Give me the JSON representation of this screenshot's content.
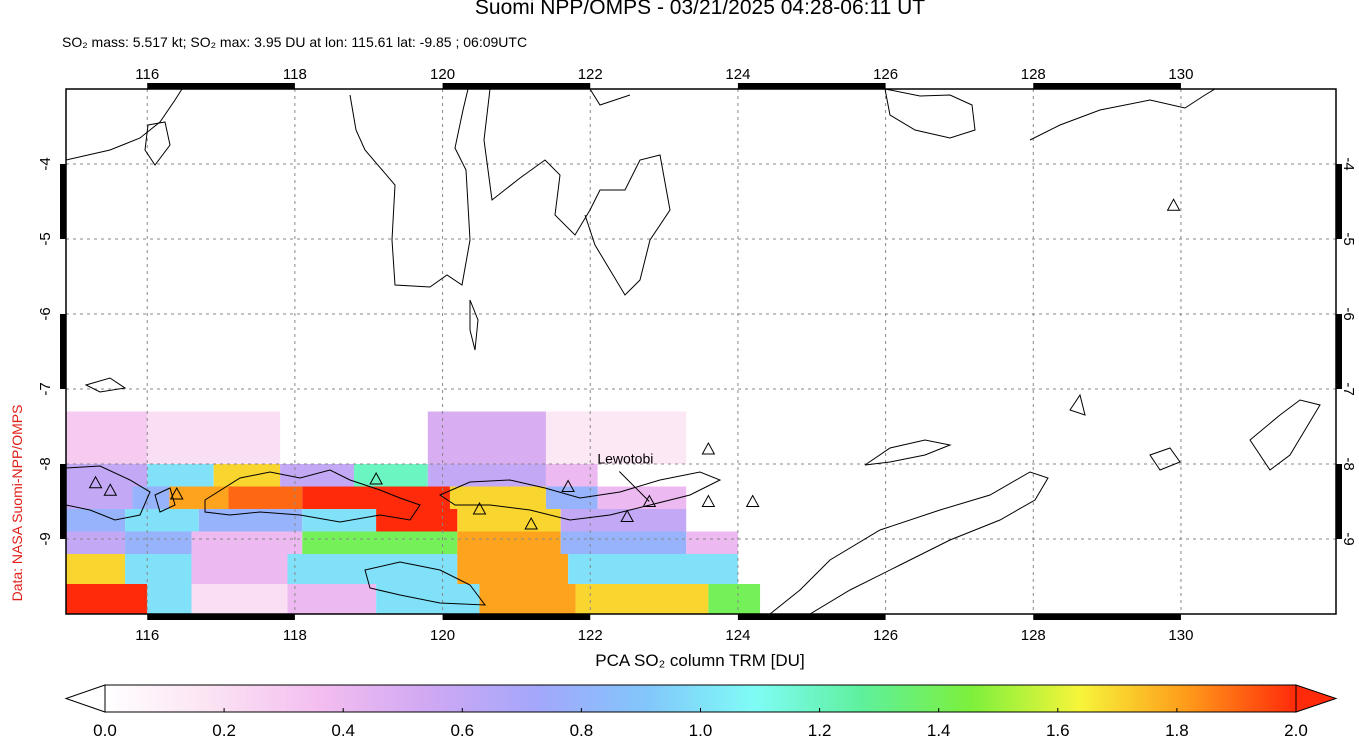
{
  "chart_data": {
    "type": "map",
    "title": "Suomi NPP/OMPS - 03/21/2025 04:28-06:11 UT",
    "subtitle": "SO₂ mass: 5.517 kt; SO₂ max: 3.95 DU at lon: 115.61 lat: -9.85 ; 06:09UTC",
    "side_note": "Data: NASA Suomi-NPP/OMPS",
    "xlim": [
      114.9,
      132.1
    ],
    "ylim": [
      -10.0,
      -3.0
    ],
    "xticks": [
      116,
      118,
      120,
      122,
      124,
      126,
      128,
      130
    ],
    "yticks": [
      -4,
      -5,
      -6,
      -7,
      -8,
      -9
    ],
    "grid": true,
    "colorbar": {
      "label": "PCA SO₂ column TRM [DU]",
      "lim": [
        0,
        2
      ],
      "ticks": [
        {
          "value": 0,
          "label": "0.0"
        },
        {
          "value": 0.2,
          "label": "0.2"
        },
        {
          "value": 0.4,
          "label": "0.4"
        },
        {
          "value": 0.6,
          "label": "0.6"
        },
        {
          "value": 0.8,
          "label": "0.8"
        },
        {
          "value": 1.0,
          "label": "1.0"
        },
        {
          "value": 1.2,
          "label": "1.2"
        },
        {
          "value": 1.4,
          "label": "1.4"
        },
        {
          "value": 1.6,
          "label": "1.6"
        },
        {
          "value": 1.8,
          "label": "1.8"
        },
        {
          "value": 2.0,
          "label": "2.0"
        }
      ],
      "colors": [
        "#ffffff",
        "#fbe2f3",
        "#f3bdf0",
        "#cfa8f3",
        "#a3a7fb",
        "#82c6fb",
        "#7ffcf6",
        "#5ef09c",
        "#7df03c",
        "#f6f53a",
        "#ff9a1a",
        "#ff2a0a"
      ]
    },
    "pixels": [
      {
        "lon": [
          114.9,
          116.0
        ],
        "lat": [
          -7.3,
          -8.0
        ],
        "value": 0.3
      },
      {
        "lon": [
          116.0,
          117.8
        ],
        "lat": [
          -7.3,
          -8.0
        ],
        "value": 0.2
      },
      {
        "lon": [
          119.8,
          121.4
        ],
        "lat": [
          -7.3,
          -8.0
        ],
        "value": 0.5
      },
      {
        "lon": [
          121.4,
          123.3
        ],
        "lat": [
          -7.3,
          -8.0
        ],
        "value": 0.15
      },
      {
        "lon": [
          114.9,
          116.0
        ],
        "lat": [
          -8.0,
          -8.3
        ],
        "value": 0.6
      },
      {
        "lon": [
          116.0,
          116.9
        ],
        "lat": [
          -8.0,
          -8.3
        ],
        "value": 1.0
      },
      {
        "lon": [
          116.9,
          117.8
        ],
        "lat": [
          -8.0,
          -8.3
        ],
        "value": 1.7
      },
      {
        "lon": [
          117.8,
          118.8
        ],
        "lat": [
          -8.0,
          -8.3
        ],
        "value": 0.6
      },
      {
        "lon": [
          118.8,
          119.8
        ],
        "lat": [
          -8.0,
          -8.3
        ],
        "value": 1.2
      },
      {
        "lon": [
          119.8,
          121.4
        ],
        "lat": [
          -8.0,
          -8.3
        ],
        "value": 0.6
      },
      {
        "lon": [
          121.4,
          122.1
        ],
        "lat": [
          -8.0,
          -8.3
        ],
        "value": 0.4
      },
      {
        "lon": [
          114.9,
          115.8
        ],
        "lat": [
          -8.3,
          -8.6
        ],
        "value": 0.6
      },
      {
        "lon": [
          115.8,
          116.3
        ],
        "lat": [
          -8.3,
          -8.6
        ],
        "value": 0.8
      },
      {
        "lon": [
          116.3,
          117.1
        ],
        "lat": [
          -8.3,
          -8.6
        ],
        "value": 1.8
      },
      {
        "lon": [
          117.1,
          118.1
        ],
        "lat": [
          -8.3,
          -8.6
        ],
        "value": 1.9
      },
      {
        "lon": [
          118.1,
          120.1
        ],
        "lat": [
          -8.3,
          -8.6
        ],
        "value": 2.0
      },
      {
        "lon": [
          120.1,
          121.4
        ],
        "lat": [
          -8.3,
          -8.6
        ],
        "value": 1.7
      },
      {
        "lon": [
          121.4,
          122.1
        ],
        "lat": [
          -8.3,
          -8.6
        ],
        "value": 0.8
      },
      {
        "lon": [
          122.1,
          123.3
        ],
        "lat": [
          -8.3,
          -8.6
        ],
        "value": 0.4
      },
      {
        "lon": [
          114.9,
          115.7
        ],
        "lat": [
          -8.6,
          -8.9
        ],
        "value": 0.8
      },
      {
        "lon": [
          115.7,
          116.7
        ],
        "lat": [
          -8.6,
          -8.9
        ],
        "value": 1.0
      },
      {
        "lon": [
          116.7,
          118.1
        ],
        "lat": [
          -8.6,
          -8.9
        ],
        "value": 0.8
      },
      {
        "lon": [
          118.1,
          119.1
        ],
        "lat": [
          -8.6,
          -8.9
        ],
        "value": 1.0
      },
      {
        "lon": [
          119.1,
          120.2
        ],
        "lat": [
          -8.6,
          -8.9
        ],
        "value": 2.0
      },
      {
        "lon": [
          120.2,
          121.6
        ],
        "lat": [
          -8.6,
          -8.9
        ],
        "value": 1.7
      },
      {
        "lon": [
          121.6,
          123.3
        ],
        "lat": [
          -8.6,
          -8.9
        ],
        "value": 0.6
      },
      {
        "lon": [
          114.9,
          115.7
        ],
        "lat": [
          -8.9,
          -9.2
        ],
        "value": 0.6
      },
      {
        "lon": [
          115.7,
          116.6
        ],
        "lat": [
          -8.9,
          -9.2
        ],
        "value": 0.8
      },
      {
        "lon": [
          116.6,
          118.1
        ],
        "lat": [
          -8.9,
          -9.2
        ],
        "value": 0.4
      },
      {
        "lon": [
          118.1,
          120.2
        ],
        "lat": [
          -8.9,
          -9.2
        ],
        "value": 1.4
      },
      {
        "lon": [
          120.2,
          121.6
        ],
        "lat": [
          -8.9,
          -9.2
        ],
        "value": 1.8
      },
      {
        "lon": [
          121.6,
          123.3
        ],
        "lat": [
          -8.9,
          -9.2
        ],
        "value": 0.8
      },
      {
        "lon": [
          123.3,
          124.0
        ],
        "lat": [
          -8.9,
          -9.2
        ],
        "value": 0.4
      },
      {
        "lon": [
          114.9,
          115.7
        ],
        "lat": [
          -9.2,
          -9.6
        ],
        "value": 1.7
      },
      {
        "lon": [
          115.7,
          116.6
        ],
        "lat": [
          -9.2,
          -9.6
        ],
        "value": 1.0
      },
      {
        "lon": [
          116.6,
          117.9
        ],
        "lat": [
          -9.2,
          -9.6
        ],
        "value": 0.4
      },
      {
        "lon": [
          117.9,
          120.2
        ],
        "lat": [
          -9.2,
          -9.6
        ],
        "value": 1.0
      },
      {
        "lon": [
          120.2,
          121.7
        ],
        "lat": [
          -9.2,
          -9.6
        ],
        "value": 1.8
      },
      {
        "lon": [
          121.7,
          124.0
        ],
        "lat": [
          -9.2,
          -9.6
        ],
        "value": 1.0
      },
      {
        "lon": [
          114.9,
          116.0
        ],
        "lat": [
          -9.6,
          -10.0
        ],
        "value": 2.0
      },
      {
        "lon": [
          116.0,
          116.6
        ],
        "lat": [
          -9.6,
          -10.0
        ],
        "value": 1.0
      },
      {
        "lon": [
          116.6,
          117.9
        ],
        "lat": [
          -9.6,
          -10.0
        ],
        "value": 0.2
      },
      {
        "lon": [
          117.9,
          119.1
        ],
        "lat": [
          -9.6,
          -10.0
        ],
        "value": 0.4
      },
      {
        "lon": [
          119.1,
          120.5
        ],
        "lat": [
          -9.6,
          -10.0
        ],
        "value": 1.0
      },
      {
        "lon": [
          120.5,
          121.8
        ],
        "lat": [
          -9.6,
          -10.0
        ],
        "value": 1.8
      },
      {
        "lon": [
          121.8,
          123.6
        ],
        "lat": [
          -9.6,
          -10.0
        ],
        "value": 1.7
      },
      {
        "lon": [
          123.6,
          124.3
        ],
        "lat": [
          -9.6,
          -10.0
        ],
        "value": 1.4
      }
    ],
    "volcanoes": {
      "lon": [
        115.3,
        115.5,
        116.4,
        119.1,
        120.5,
        121.2,
        121.7,
        122.5,
        122.8,
        123.6,
        123.6,
        124.2,
        129.9
      ],
      "lat": [
        -8.25,
        -8.35,
        -8.4,
        -8.2,
        -8.6,
        -8.8,
        -8.3,
        -8.7,
        -8.5,
        -7.8,
        -8.5,
        -8.5,
        -4.55
      ]
    },
    "annotations": [
      {
        "text": "Lewotobi",
        "lon": 122.8,
        "lat": -8.5
      }
    ]
  }
}
